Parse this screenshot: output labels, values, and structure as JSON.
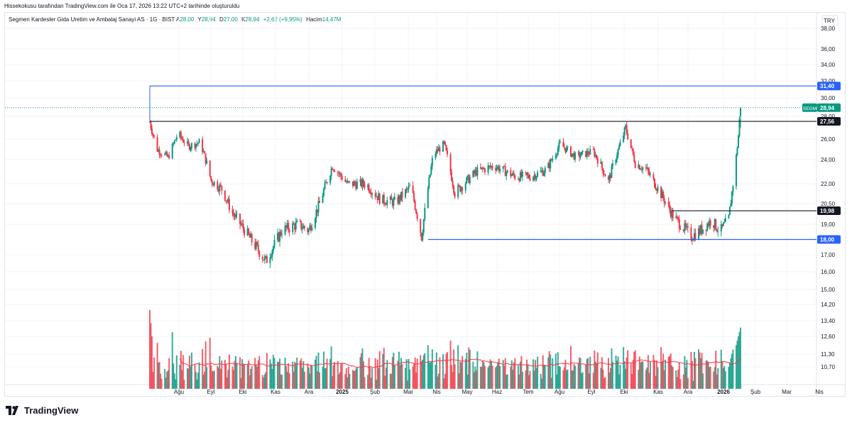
{
  "caption": "Hissekokusu tarafından TradingView.com ile Oca 17, 2026 13:22 UTC+2 tarihinde oluşturuldu",
  "legend": {
    "title": "Segmen Kardesler Gida Uretim ve Ambalaj Sanayi AS · 1G · BIST",
    "open_label": "A",
    "open": "28,00",
    "high_label": "Y",
    "high": "28,94",
    "low_label": "D",
    "low": "27,00",
    "close_label": "K",
    "close": "28,94",
    "change": "+2,62 (+9,95%)",
    "volume_label": "Hacim",
    "volume": "14,47M"
  },
  "currency": "TRY",
  "brand": "TradingView",
  "colors": {
    "up": "#089981",
    "down": "#f23645",
    "blue_line": "#2962ff",
    "black_line": "#131722",
    "ma": "#f23645",
    "last_price_tag": "#089981"
  },
  "chart_data": {
    "type": "candlestick",
    "symbol": "SEGMN",
    "last_price": 28.94,
    "x_axis_labels": [
      "Ağu",
      "Eyl",
      "Eki",
      "Kas",
      "Ara",
      "2025",
      "Şub",
      "Mar",
      "Nis",
      "May",
      "Haz",
      "Tem",
      "Ağu",
      "Eyl",
      "Eki",
      "Kas",
      "Ara",
      "2026",
      "Şub",
      "Mar",
      "Nis"
    ],
    "price_axis_labels": [
      "38,00",
      "36,00",
      "34,00",
      "32,00",
      "30,00",
      "28,00",
      "26,00",
      "24,00",
      "22,00",
      "20,50",
      "19,00",
      "17,00",
      "16,00",
      "15,00",
      "14,20",
      "13,40",
      "12,60",
      "11,30",
      "10,70"
    ],
    "horizontal_levels": [
      {
        "label": "31,40",
        "value": 31.4,
        "color": "blue"
      },
      {
        "label": "27,56",
        "value": 27.56,
        "color": "black"
      },
      {
        "label": "19,98",
        "value": 19.98,
        "color": "black"
      },
      {
        "label": "18,00",
        "value": 18.0,
        "color": "blue"
      }
    ],
    "price_path": [
      [
        "2024-07-15",
        27.5
      ],
      [
        "2024-07-22",
        25.0
      ],
      [
        "2024-08-01",
        24.2
      ],
      [
        "2024-08-10",
        26.5
      ],
      [
        "2024-08-20",
        25.3
      ],
      [
        "2024-08-31",
        25.7
      ],
      [
        "2024-09-10",
        22.3
      ],
      [
        "2024-09-20",
        21.6
      ],
      [
        "2024-09-30",
        19.8
      ],
      [
        "2024-10-15",
        18.2
      ],
      [
        "2024-10-31",
        16.6
      ],
      [
        "2024-11-15",
        18.6
      ],
      [
        "2024-11-30",
        19.0
      ],
      [
        "2024-12-10",
        18.6
      ],
      [
        "2024-12-20",
        20.5
      ],
      [
        "2025-01-01",
        23.5
      ],
      [
        "2025-01-15",
        22.0
      ],
      [
        "2025-02-01",
        22.0
      ],
      [
        "2025-02-15",
        20.8
      ],
      [
        "2025-03-01",
        20.6
      ],
      [
        "2025-03-15",
        21.8
      ],
      [
        "2025-03-25",
        18.2
      ],
      [
        "2025-04-05",
        24.5
      ],
      [
        "2025-04-15",
        25.5
      ],
      [
        "2025-04-25",
        21.3
      ],
      [
        "2025-05-15",
        23.0
      ],
      [
        "2025-06-01",
        23.5
      ],
      [
        "2025-06-20",
        22.6
      ],
      [
        "2025-07-05",
        22.6
      ],
      [
        "2025-07-20",
        23.2
      ],
      [
        "2025-08-01",
        25.5
      ],
      [
        "2025-08-15",
        24.3
      ],
      [
        "2025-09-01",
        24.8
      ],
      [
        "2025-09-15",
        22.2
      ],
      [
        "2025-10-01",
        27.0
      ],
      [
        "2025-10-10",
        23.7
      ],
      [
        "2025-10-20",
        23.2
      ],
      [
        "2025-11-01",
        21.5
      ],
      [
        "2025-11-15",
        19.5
      ],
      [
        "2025-12-01",
        18.2
      ],
      [
        "2025-12-10",
        18.6
      ],
      [
        "2025-12-20",
        19.3
      ],
      [
        "2025-12-28",
        18.5
      ],
      [
        "2026-01-05",
        19.4
      ],
      [
        "2026-01-09",
        22.0
      ],
      [
        "2026-01-12",
        24.3
      ],
      [
        "2026-01-14",
        26.3
      ],
      [
        "2026-01-16",
        28.94
      ]
    ],
    "volume_axis": "same scale as price axis (10,70 – 15,00 lower pane)",
    "ma_on_volume": true,
    "grid": "horizontal only"
  }
}
